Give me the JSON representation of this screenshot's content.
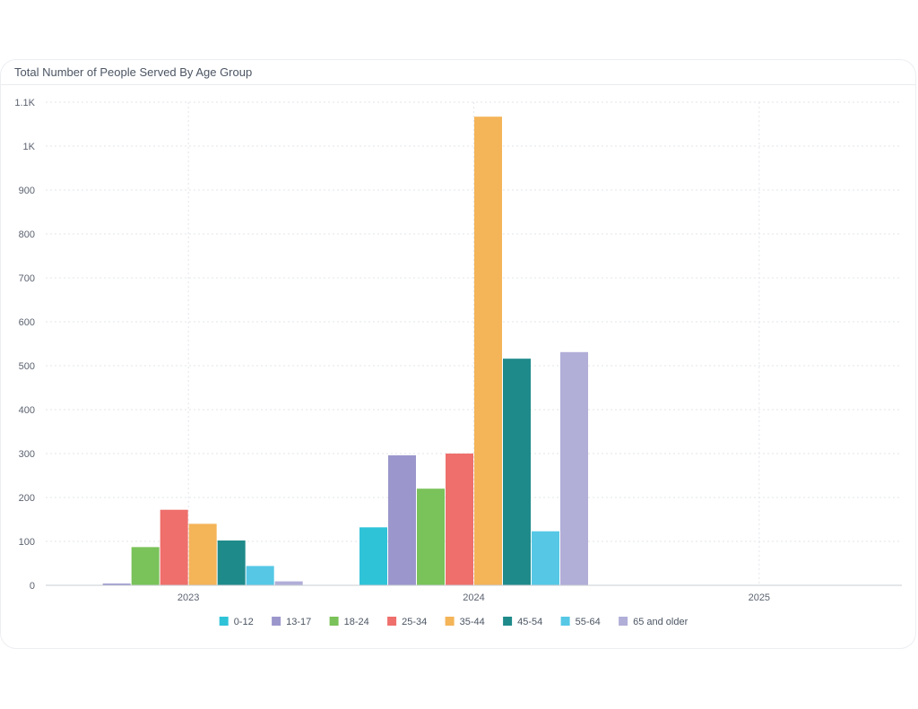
{
  "card": {
    "title": "Total Number of People Served By Age Group"
  },
  "chart_data": {
    "type": "bar",
    "title": "Total Number of People Served By Age Group",
    "categories": [
      "2023",
      "2024",
      "2025"
    ],
    "series": [
      {
        "name": "0-12",
        "color": "#2fc3d8",
        "values": [
          0,
          132,
          0
        ]
      },
      {
        "name": "13-17",
        "color": "#9b97cc",
        "values": [
          4,
          296,
          0
        ]
      },
      {
        "name": "18-24",
        "color": "#7ac25a",
        "values": [
          87,
          220,
          0
        ]
      },
      {
        "name": "25-34",
        "color": "#ef6f6c",
        "values": [
          172,
          300,
          0
        ]
      },
      {
        "name": "35-44",
        "color": "#f4b458",
        "values": [
          140,
          1067,
          0
        ]
      },
      {
        "name": "45-54",
        "color": "#1f8a8a",
        "values": [
          102,
          516,
          0
        ]
      },
      {
        "name": "55-64",
        "color": "#56c8e6",
        "values": [
          44,
          123,
          0
        ]
      },
      {
        "name": "65 and older",
        "color": "#b1aed8",
        "values": [
          9,
          531,
          0
        ]
      }
    ],
    "y_ticks": [
      {
        "value": 0,
        "label": "0"
      },
      {
        "value": 100,
        "label": "100"
      },
      {
        "value": 200,
        "label": "200"
      },
      {
        "value": 300,
        "label": "300"
      },
      {
        "value": 400,
        "label": "400"
      },
      {
        "value": 500,
        "label": "500"
      },
      {
        "value": 600,
        "label": "600"
      },
      {
        "value": 700,
        "label": "700"
      },
      {
        "value": 800,
        "label": "800"
      },
      {
        "value": 900,
        "label": "900"
      },
      {
        "value": 1000,
        "label": "1K"
      },
      {
        "value": 1100,
        "label": "1.1K"
      }
    ],
    "ylim": [
      0,
      1100
    ],
    "grid": true,
    "legend_position": "bottom"
  }
}
